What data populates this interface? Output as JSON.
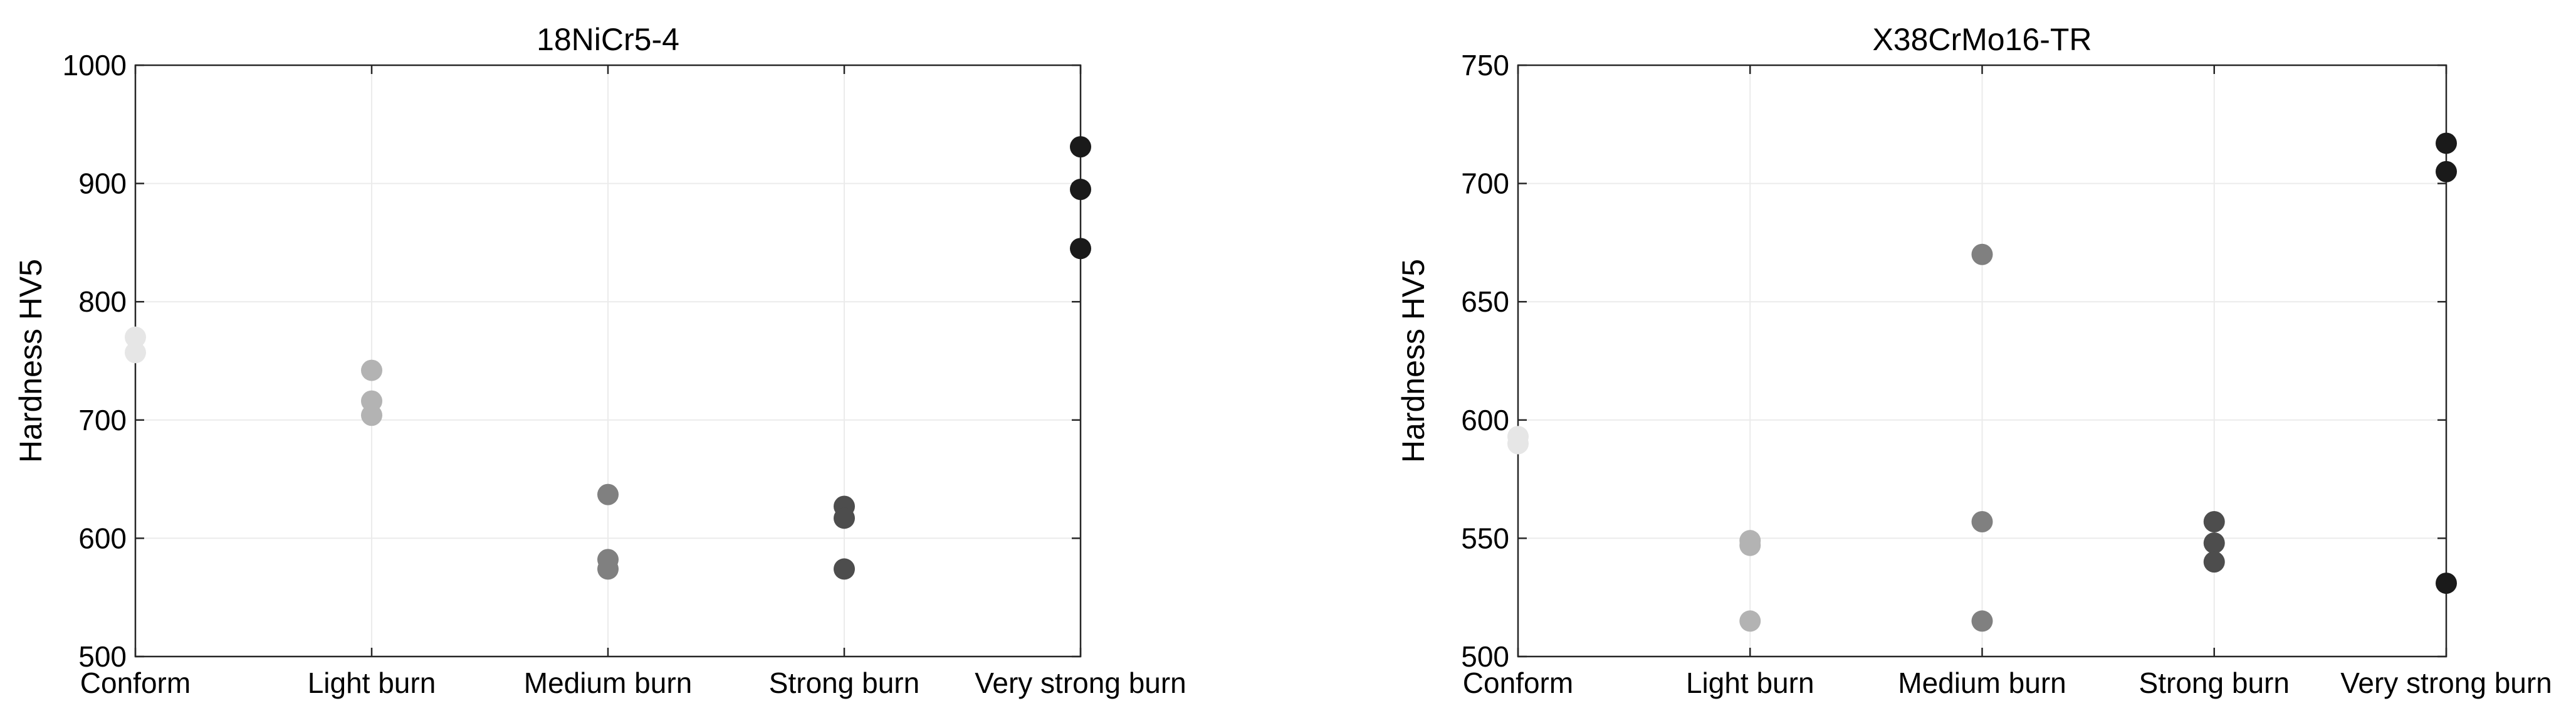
{
  "chart_data": [
    {
      "type": "scatter",
      "title": "18NiCr5-4",
      "ylabel": "Hardness HV5",
      "xlabel": "",
      "categories": [
        "Conform",
        "Light burn",
        "Medium burn",
        "Strong burn",
        "Very strong burn"
      ],
      "ylim": [
        500,
        1000
      ],
      "yticks": [
        500,
        600,
        700,
        800,
        900,
        1000
      ],
      "grid": true,
      "series": [
        {
          "category": "Conform",
          "values": [
            770,
            757
          ],
          "color": "#e6e6e6"
        },
        {
          "category": "Light burn",
          "values": [
            742,
            716,
            704
          ],
          "color": "#b3b3b3"
        },
        {
          "category": "Medium burn",
          "values": [
            637,
            582,
            574
          ],
          "color": "#808080"
        },
        {
          "category": "Strong burn",
          "values": [
            627,
            617,
            574
          ],
          "color": "#4d4d4d"
        },
        {
          "category": "Very strong burn",
          "values": [
            931,
            895,
            845
          ],
          "color": "#1a1a1a"
        }
      ]
    },
    {
      "type": "scatter",
      "title": "X38CrMo16-TR",
      "ylabel": "Hardness HV5",
      "xlabel": "",
      "categories": [
        "Conform",
        "Light burn",
        "Medium burn",
        "Strong burn",
        "Very strong burn"
      ],
      "ylim": [
        500,
        750
      ],
      "yticks": [
        500,
        550,
        600,
        650,
        700,
        750
      ],
      "grid": true,
      "series": [
        {
          "category": "Conform",
          "values": [
            593,
            590
          ],
          "color": "#e6e6e6"
        },
        {
          "category": "Light burn",
          "values": [
            549,
            547,
            515
          ],
          "color": "#b3b3b3"
        },
        {
          "category": "Medium burn",
          "values": [
            670,
            557,
            515
          ],
          "color": "#808080"
        },
        {
          "category": "Strong burn",
          "values": [
            557,
            548,
            540
          ],
          "color": "#4d4d4d"
        },
        {
          "category": "Very strong burn",
          "values": [
            717,
            705,
            531
          ],
          "color": "#1a1a1a"
        }
      ]
    }
  ]
}
